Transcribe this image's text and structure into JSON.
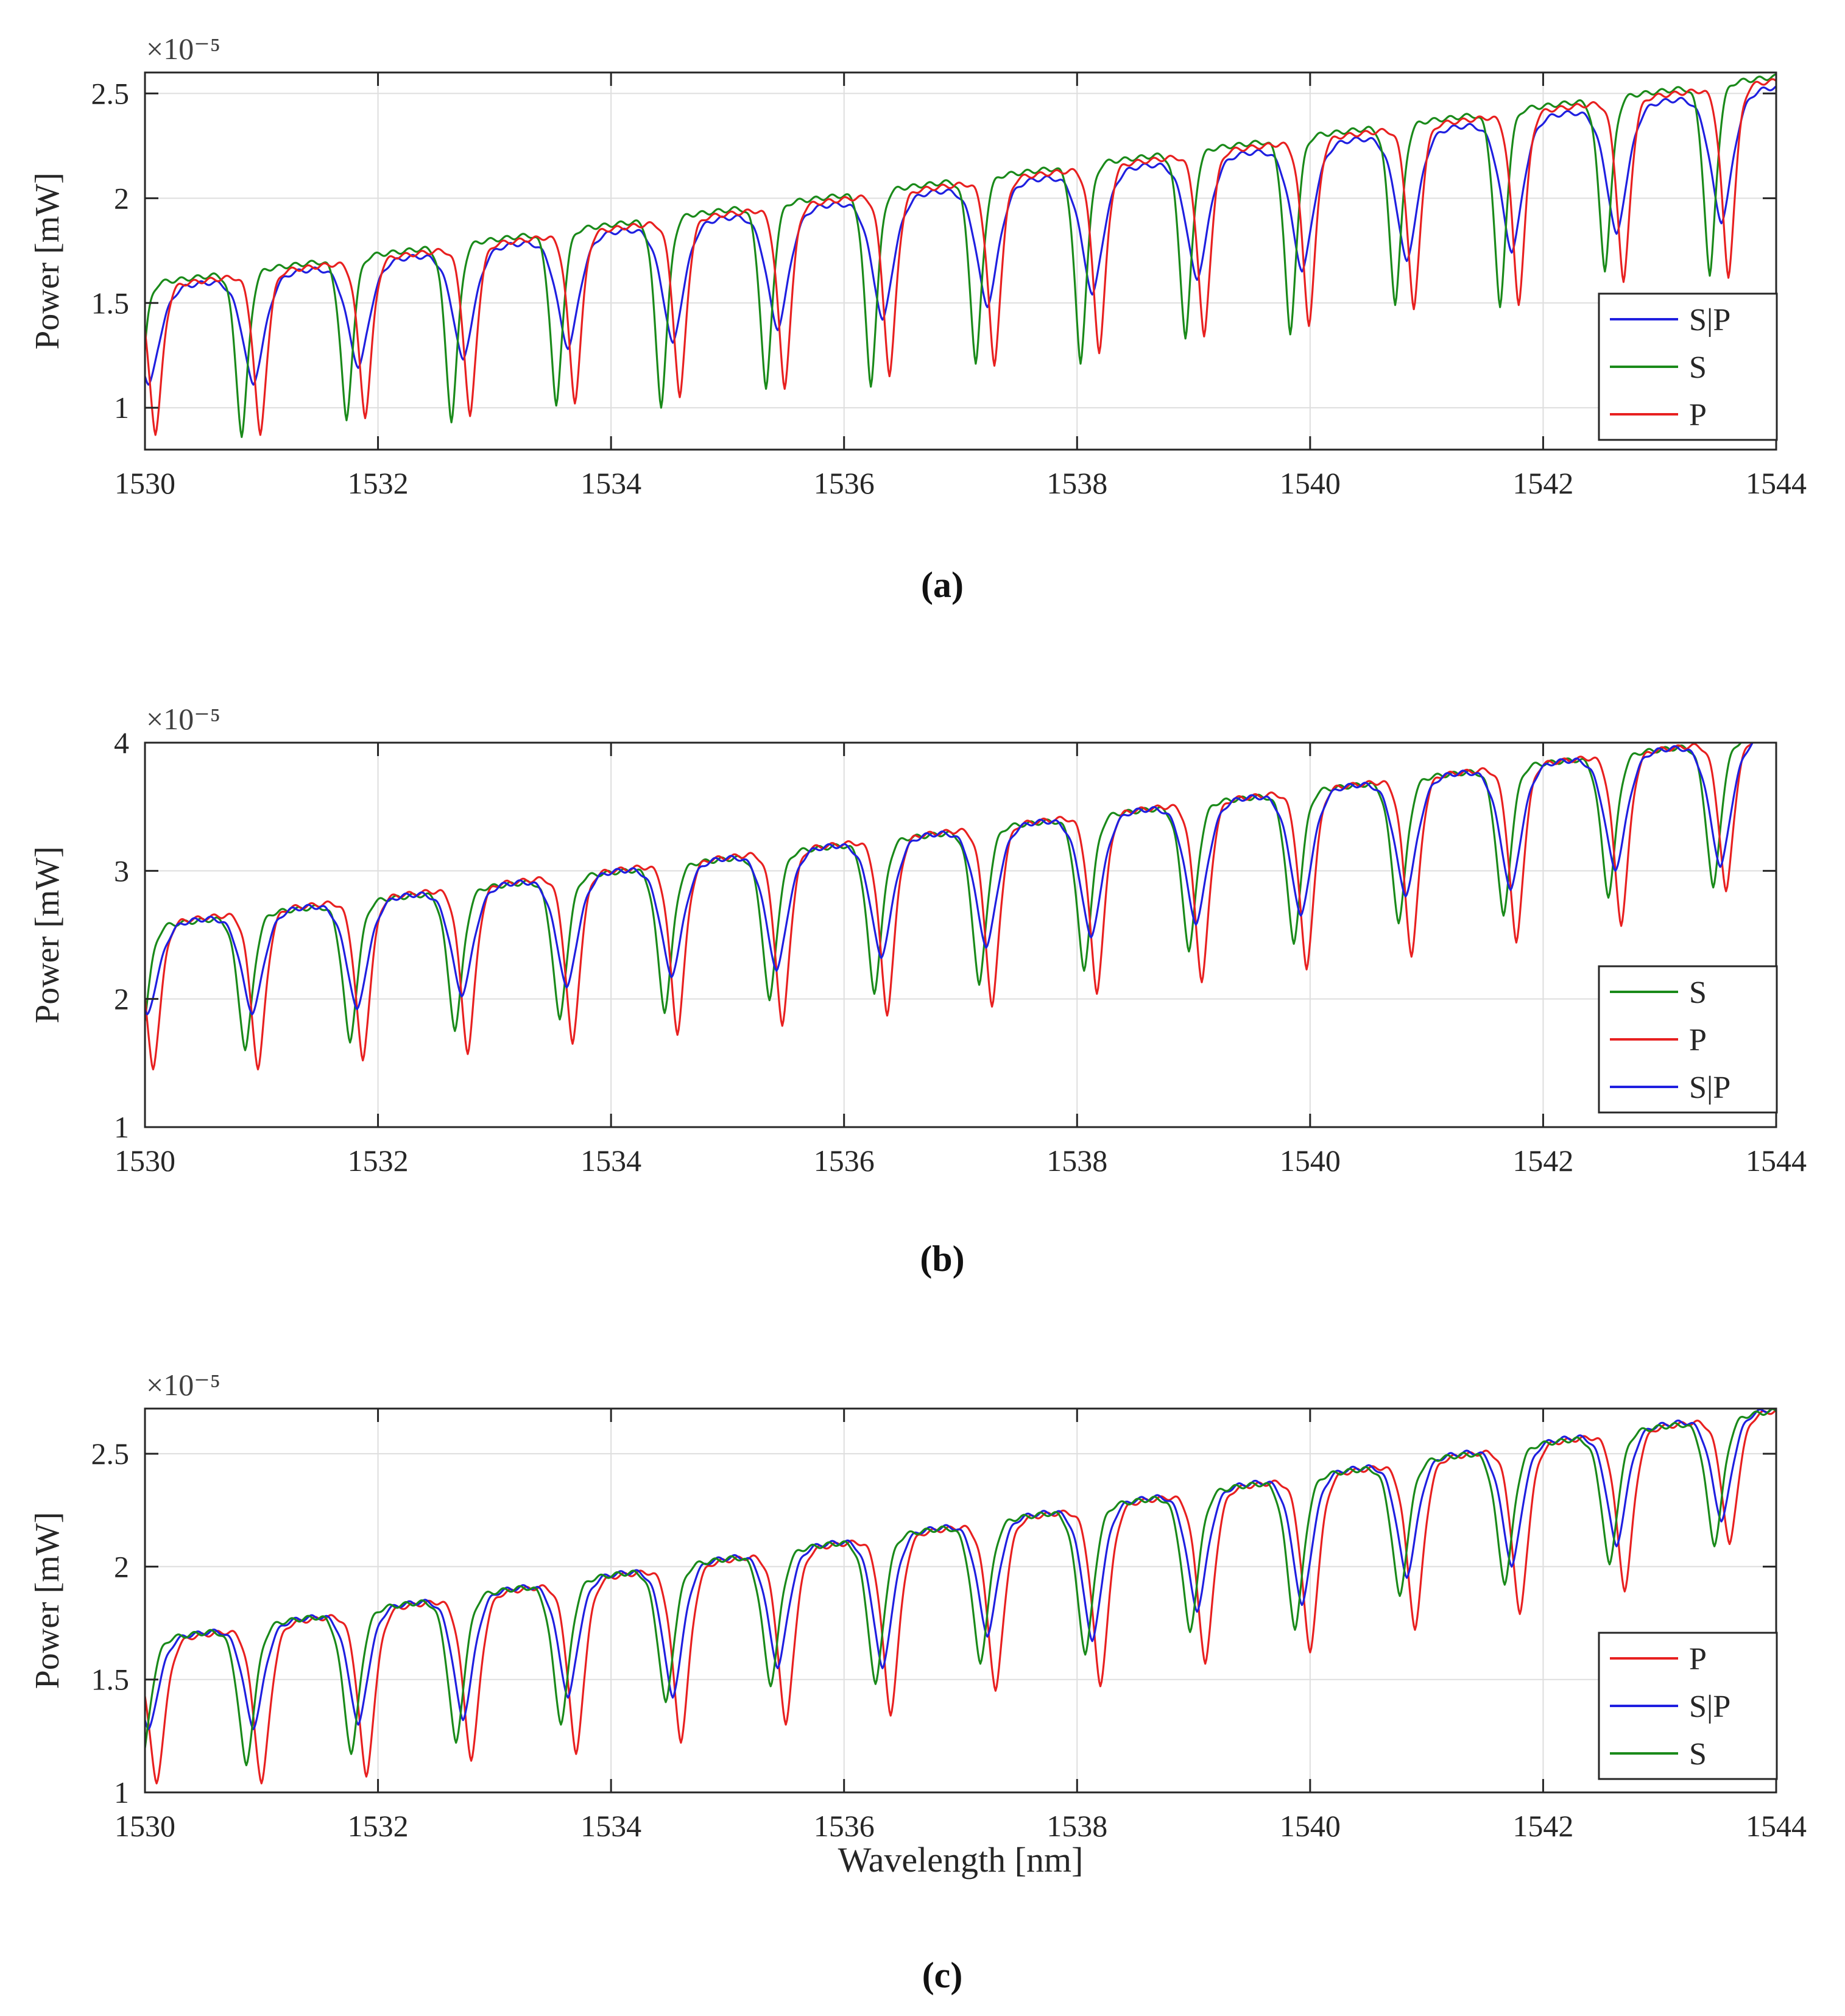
{
  "chart_data": [
    {
      "type": "line",
      "panel_label": "a",
      "caption": "(a)",
      "xlabel": "",
      "ylabel": "Power [mW]",
      "exponent_label": "×10⁻⁵",
      "xlim": [
        1530,
        1544
      ],
      "ylim": [
        0.8,
        2.6
      ],
      "xticks": [
        "1530",
        "1532",
        "1534",
        "1536",
        "1538",
        "1540",
        "1542",
        "1544"
      ],
      "yticks": [
        "1",
        "1.5",
        "2",
        "2.5"
      ],
      "ytick_values": [
        1,
        1.5,
        2,
        2.5
      ],
      "grid": true,
      "legend_position": "lower-right",
      "legend": [
        "S|P",
        "S",
        "P"
      ],
      "colors": {
        "S|P": "#1f1fe0",
        "S": "#1a8a1a",
        "P": "#e82020"
      },
      "period_nm": 0.9,
      "series": [
        {
          "name": "S|P",
          "color": "#1f1fe0",
          "dip_offset_nm": 0.93,
          "dip_width_nm": 0.13,
          "plateau_start": 1.56,
          "plateau_end": 2.53,
          "dip_minimum_values": [
            1.11,
            1.19,
            1.23,
            1.28,
            1.31,
            1.37,
            1.42,
            1.48,
            1.54,
            1.61,
            1.65,
            1.7,
            1.74,
            1.83,
            1.88
          ]
        },
        {
          "name": "S",
          "color": "#1a8a1a",
          "dip_offset_nm": 0.83,
          "dip_width_nm": 0.075,
          "plateau_start": 1.59,
          "plateau_end": 2.58,
          "dip_minimum_values": [
            0.86,
            0.94,
            0.93,
            1.01,
            1.0,
            1.09,
            1.1,
            1.21,
            1.21,
            1.33,
            1.35,
            1.49,
            1.48,
            1.65,
            1.63
          ]
        },
        {
          "name": "P",
          "color": "#e82020",
          "dip_offset_nm": 0.99,
          "dip_width_nm": 0.08,
          "plateau_start": 1.57,
          "plateau_end": 2.56,
          "dip_minimum_values": [
            0.87,
            0.95,
            0.96,
            1.02,
            1.05,
            1.09,
            1.15,
            1.2,
            1.26,
            1.34,
            1.39,
            1.47,
            1.49,
            1.6,
            1.62
          ]
        }
      ]
    },
    {
      "type": "line",
      "panel_label": "b",
      "caption": "(b)",
      "xlabel": "",
      "ylabel": "Power [mW]",
      "exponent_label": "×10⁻⁵",
      "xlim": [
        1530,
        1544
      ],
      "ylim": [
        1,
        4
      ],
      "xticks": [
        "1530",
        "1532",
        "1534",
        "1536",
        "1538",
        "1540",
        "1542",
        "1544"
      ],
      "yticks": [
        "1",
        "2",
        "3",
        "4"
      ],
      "ytick_values": [
        1,
        2,
        3,
        4
      ],
      "grid": true,
      "legend_position": "lower-right",
      "legend": [
        "S",
        "P",
        "S|P"
      ],
      "colors": {
        "S": "#1a8a1a",
        "P": "#e82020",
        "S|P": "#1f1fe0"
      },
      "period_nm": 0.9,
      "series": [
        {
          "name": "S",
          "color": "#1a8a1a",
          "dip_offset_nm": 0.86,
          "dip_width_nm": 0.09,
          "plateau_start": 2.56,
          "plateau_end": 4.05,
          "dip_minimum_values": [
            1.6,
            1.66,
            1.75,
            1.84,
            1.89,
            1.99,
            2.04,
            2.11,
            2.22,
            2.37,
            2.43,
            2.59,
            2.65,
            2.79,
            2.87
          ]
        },
        {
          "name": "P",
          "color": "#e82020",
          "dip_offset_nm": 0.97,
          "dip_width_nm": 0.09,
          "plateau_start": 2.58,
          "plateau_end": 4.05,
          "dip_minimum_values": [
            1.45,
            1.52,
            1.57,
            1.65,
            1.72,
            1.79,
            1.87,
            1.94,
            2.04,
            2.13,
            2.23,
            2.33,
            2.44,
            2.57,
            2.84
          ]
        },
        {
          "name": "S|P",
          "color": "#1f1fe0",
          "dip_offset_nm": 0.92,
          "dip_width_nm": 0.13,
          "plateau_start": 2.57,
          "plateau_end": 4.05,
          "dip_minimum_values": [
            1.88,
            1.92,
            2.02,
            2.09,
            2.17,
            2.22,
            2.32,
            2.4,
            2.48,
            2.58,
            2.65,
            2.8,
            2.85,
            3.0,
            3.03
          ]
        }
      ]
    },
    {
      "type": "line",
      "panel_label": "c",
      "caption": "(c)",
      "xlabel": "Wavelength [nm]",
      "ylabel": "Power [mW]",
      "exponent_label": "×10⁻⁵",
      "xlim": [
        1530,
        1544
      ],
      "ylim": [
        1,
        2.7
      ],
      "xticks": [
        "1530",
        "1532",
        "1534",
        "1536",
        "1538",
        "1540",
        "1542",
        "1544"
      ],
      "yticks": [
        "1",
        "1.5",
        "2",
        "2.5"
      ],
      "ytick_values": [
        1,
        1.5,
        2,
        2.5
      ],
      "grid": true,
      "legend_position": "lower-right",
      "legend": [
        "P",
        "S|P",
        "S"
      ],
      "colors": {
        "P": "#e82020",
        "S|P": "#1f1fe0",
        "S": "#1a8a1a"
      },
      "period_nm": 0.9,
      "series": [
        {
          "name": "P",
          "color": "#e82020",
          "dip_offset_nm": 1.0,
          "dip_width_nm": 0.1,
          "plateau_start": 1.66,
          "plateau_end": 2.69,
          "dip_minimum_values": [
            1.04,
            1.07,
            1.14,
            1.17,
            1.22,
            1.3,
            1.34,
            1.45,
            1.47,
            1.57,
            1.62,
            1.72,
            1.79,
            1.89,
            2.1
          ]
        },
        {
          "name": "S|P",
          "color": "#1f1fe0",
          "dip_offset_nm": 0.93,
          "dip_width_nm": 0.12,
          "plateau_start": 1.67,
          "plateau_end": 2.7,
          "dip_minimum_values": [
            1.28,
            1.3,
            1.32,
            1.42,
            1.42,
            1.55,
            1.55,
            1.69,
            1.67,
            1.8,
            1.83,
            1.95,
            2.0,
            2.09,
            2.2
          ]
        },
        {
          "name": "S",
          "color": "#1a8a1a",
          "dip_offset_nm": 0.87,
          "dip_width_nm": 0.1,
          "plateau_start": 1.67,
          "plateau_end": 2.69,
          "dip_minimum_values": [
            1.12,
            1.17,
            1.22,
            1.3,
            1.4,
            1.47,
            1.48,
            1.57,
            1.61,
            1.71,
            1.72,
            1.87,
            1.92,
            2.01,
            2.09
          ]
        }
      ]
    }
  ]
}
